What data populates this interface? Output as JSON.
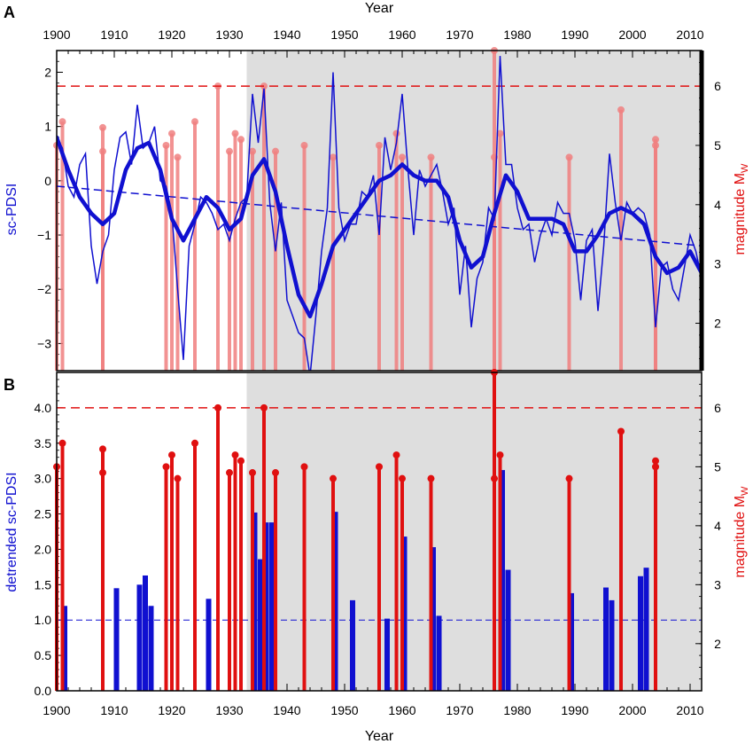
{
  "figure": {
    "top_axis_title": "Year",
    "bottom_axis_title": "Year",
    "colors": {
      "pdsi": "#1010d0",
      "quake": "#e01010",
      "quake_light": "#f08080",
      "shade": "#dedede"
    }
  },
  "chart_data": [
    {
      "panel": "A",
      "type": "line",
      "xlabel": "Year",
      "ylabel": "sc-PDSI",
      "y2label": "magnitude M",
      "y2label_sub": "W",
      "xlim": [
        1900,
        2012
      ],
      "ylim": [
        -3.5,
        2.4
      ],
      "y2lim": [
        1.2,
        6.6
      ],
      "x_ticks": [
        1900,
        1910,
        1920,
        1930,
        1940,
        1950,
        1960,
        1970,
        1980,
        1990,
        2000,
        2010
      ],
      "y_ticks": [
        -3,
        -2,
        -1,
        0,
        1,
        2
      ],
      "y2_ticks": [
        2,
        3,
        4,
        5,
        6
      ],
      "shaded_range": [
        1933,
        2012
      ],
      "magnitude_threshold": 6.0,
      "trend_line": {
        "x": [
          1900,
          2012
        ],
        "y": [
          -0.1,
          -1.2
        ]
      },
      "annual_pdsi": {
        "x": [
          1900,
          1901,
          1902,
          1903,
          1904,
          1905,
          1906,
          1907,
          1908,
          1909,
          1910,
          1911,
          1912,
          1913,
          1914,
          1915,
          1916,
          1917,
          1918,
          1919,
          1920,
          1921,
          1922,
          1923,
          1924,
          1925,
          1926,
          1927,
          1928,
          1929,
          1930,
          1931,
          1932,
          1933,
          1934,
          1935,
          1936,
          1937,
          1938,
          1939,
          1940,
          1941,
          1942,
          1943,
          1944,
          1945,
          1946,
          1947,
          1948,
          1949,
          1950,
          1951,
          1952,
          1953,
          1954,
          1955,
          1956,
          1957,
          1958,
          1959,
          1960,
          1961,
          1962,
          1963,
          1964,
          1965,
          1966,
          1967,
          1968,
          1969,
          1970,
          1971,
          1972,
          1973,
          1974,
          1975,
          1976,
          1977,
          1978,
          1979,
          1980,
          1981,
          1982,
          1983,
          1984,
          1985,
          1986,
          1987,
          1988,
          1989,
          1990,
          1991,
          1992,
          1993,
          1994,
          1995,
          1996,
          1997,
          1998,
          1999,
          2000,
          2001,
          2002,
          2003,
          2004,
          2005,
          2006,
          2007,
          2008,
          2009,
          2010,
          2011,
          2012
        ],
        "y": [
          0.8,
          0.6,
          -0.1,
          -0.3,
          0.3,
          0.5,
          -1.2,
          -1.9,
          -1.3,
          -1.0,
          0.2,
          0.8,
          0.9,
          0.3,
          1.4,
          0.6,
          0.7,
          1.0,
          0.0,
          -0.1,
          -0.6,
          -2.0,
          -3.3,
          -1.2,
          -0.8,
          -0.3,
          -0.4,
          -0.6,
          -0.9,
          -0.8,
          -1.1,
          -0.7,
          -0.4,
          -0.3,
          1.6,
          0.7,
          1.7,
          -0.4,
          -1.3,
          -0.4,
          -2.2,
          -2.5,
          -2.8,
          -2.9,
          -3.6,
          -2.5,
          -1.3,
          -0.5,
          2.0,
          -0.5,
          -1.1,
          -0.8,
          -0.8,
          -0.2,
          -0.3,
          0.1,
          -1.0,
          0.8,
          0.2,
          0.7,
          1.6,
          0.2,
          -1.0,
          0.2,
          -0.1,
          0.1,
          0.3,
          -0.2,
          -0.8,
          -0.5,
          -2.1,
          -1.2,
          -2.7,
          -1.8,
          -1.5,
          -0.5,
          -0.7,
          2.3,
          0.3,
          0.3,
          -0.5,
          -0.9,
          -0.8,
          -1.5,
          -1.0,
          -0.7,
          -1.0,
          -0.4,
          -0.6,
          -0.6,
          -1.1,
          -2.2,
          -1.1,
          -0.9,
          -2.4,
          -1.2,
          0.5,
          -0.4,
          -1.1,
          -0.4,
          -0.6,
          -0.5,
          -0.6,
          -1.0,
          -2.7,
          -1.6,
          -1.5,
          -2.0,
          -2.2,
          -1.6,
          -1.0,
          -1.3,
          -1.8
        ]
      },
      "smoothed_pdsi": {
        "x": [
          1900,
          1902,
          1904,
          1906,
          1908,
          1910,
          1912,
          1914,
          1916,
          1918,
          1920,
          1922,
          1924,
          1926,
          1928,
          1930,
          1932,
          1934,
          1936,
          1938,
          1940,
          1942,
          1944,
          1946,
          1948,
          1950,
          1952,
          1954,
          1956,
          1958,
          1960,
          1962,
          1964,
          1966,
          1968,
          1970,
          1972,
          1974,
          1976,
          1978,
          1980,
          1982,
          1984,
          1986,
          1988,
          1990,
          1992,
          1994,
          1996,
          1998,
          2000,
          2002,
          2004,
          2006,
          2008,
          2010,
          2012
        ],
        "y": [
          0.8,
          0.2,
          -0.3,
          -0.6,
          -0.8,
          -0.6,
          0.2,
          0.6,
          0.7,
          0.2,
          -0.7,
          -1.1,
          -0.7,
          -0.3,
          -0.5,
          -0.9,
          -0.7,
          0.1,
          0.4,
          -0.2,
          -1.2,
          -2.1,
          -2.5,
          -1.9,
          -1.2,
          -0.9,
          -0.6,
          -0.3,
          0.0,
          0.1,
          0.3,
          0.1,
          0.0,
          0.0,
          -0.3,
          -1.1,
          -1.6,
          -1.4,
          -0.6,
          0.1,
          -0.2,
          -0.7,
          -0.7,
          -0.7,
          -0.8,
          -1.3,
          -1.3,
          -1.0,
          -0.6,
          -0.5,
          -0.6,
          -0.8,
          -1.4,
          -1.7,
          -1.6,
          -1.3,
          -1.7
        ]
      },
      "earthquakes": {
        "x": [
          1900,
          1901,
          1908,
          1908,
          1919,
          1920,
          1921,
          1924,
          1928,
          1930,
          1931,
          1932,
          1934,
          1936,
          1938,
          1943,
          1948,
          1956,
          1959,
          1960,
          1965,
          1976,
          1976,
          1977,
          1989,
          1998,
          2004,
          2004
        ],
        "magnitude": [
          5.0,
          5.4,
          5.3,
          4.9,
          5.0,
          5.2,
          4.8,
          5.4,
          6.0,
          4.9,
          5.2,
          5.1,
          4.9,
          6.0,
          4.9,
          5.0,
          4.8,
          5.0,
          5.2,
          4.8,
          4.8,
          6.6,
          4.8,
          5.2,
          4.8,
          5.6,
          5.1,
          5.0
        ]
      }
    },
    {
      "panel": "B",
      "type": "bar",
      "xlabel": "Year",
      "ylabel": "detrended sc-PDSI",
      "y2label": "magnitude M",
      "y2label_sub": "W",
      "xlim": [
        1900,
        2012
      ],
      "ylim": [
        0.0,
        4.5
      ],
      "y2lim": [
        1.2,
        6.6
      ],
      "x_ticks": [
        1900,
        1910,
        1920,
        1930,
        1940,
        1950,
        1960,
        1970,
        1980,
        1990,
        2000,
        2010
      ],
      "y_ticks": [
        0.0,
        0.5,
        1.0,
        1.5,
        2.0,
        2.5,
        3.0,
        3.5,
        4.0
      ],
      "y_tick_labels": [
        "0.0",
        "0.5",
        "1.0",
        "1.5",
        "2.0",
        "2.5",
        "3.0",
        "3.5",
        "4.0"
      ],
      "y2_ticks": [
        2,
        3,
        4,
        5,
        6
      ],
      "shaded_range": [
        1933,
        2012
      ],
      "pdsi_threshold": 1.0,
      "magnitude_threshold": 6.0,
      "bars": {
        "x": [
          1901,
          1910,
          1914,
          1915,
          1916,
          1926,
          1934,
          1935,
          1936,
          1937,
          1948,
          1951,
          1957,
          1960,
          1965,
          1966,
          1977,
          1978,
          1989,
          1995,
          1996,
          2001,
          2002
        ],
        "values": [
          1.2,
          1.45,
          1.5,
          1.63,
          1.2,
          1.3,
          2.52,
          1.86,
          2.38,
          2.38,
          2.53,
          1.28,
          1.02,
          2.18,
          2.03,
          1.06,
          3.12,
          1.71,
          1.38,
          1.46,
          1.28,
          1.62,
          1.74
        ]
      },
      "earthquakes": {
        "x": [
          1900,
          1901,
          1908,
          1908,
          1919,
          1920,
          1921,
          1924,
          1928,
          1930,
          1931,
          1932,
          1934,
          1936,
          1938,
          1943,
          1948,
          1956,
          1959,
          1960,
          1965,
          1976,
          1976,
          1977,
          1989,
          1998,
          2004,
          2004
        ],
        "magnitude": [
          5.0,
          5.4,
          5.3,
          4.9,
          5.0,
          5.2,
          4.8,
          5.4,
          6.0,
          4.9,
          5.2,
          5.1,
          4.9,
          6.0,
          4.9,
          5.0,
          4.8,
          5.0,
          5.2,
          4.8,
          4.8,
          6.6,
          4.8,
          5.2,
          4.8,
          5.6,
          5.1,
          5.0
        ]
      }
    }
  ]
}
